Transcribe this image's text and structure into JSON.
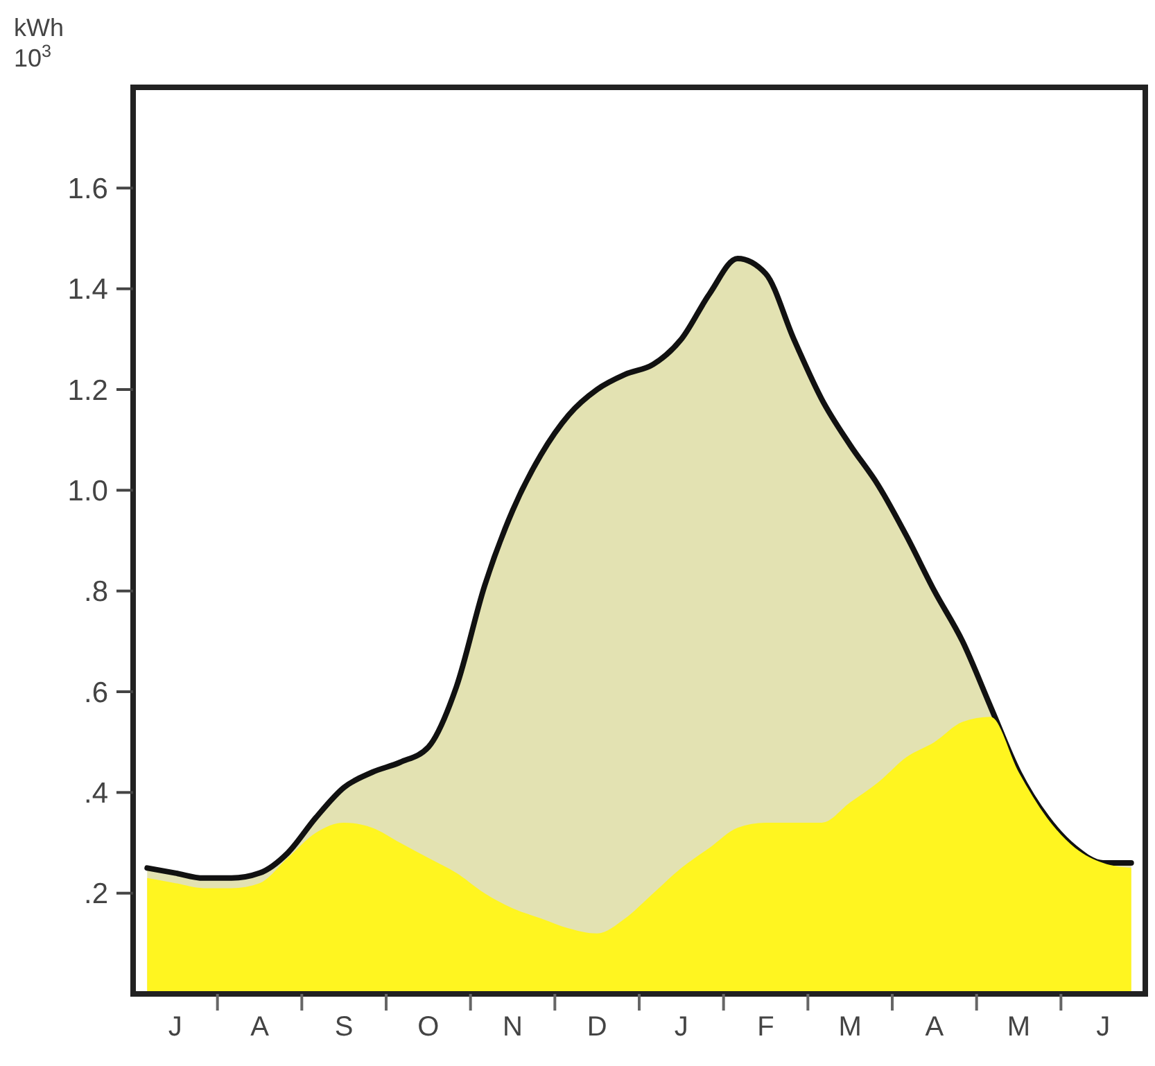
{
  "chart_data": {
    "type": "area",
    "ylabel": "kWh 10$^{3}$",
    "ylim": [
      0,
      1.8
    ],
    "yticks": [
      {
        "value": 0.2,
        "label": ".2"
      },
      {
        "value": 0.4,
        "label": ".4"
      },
      {
        "value": 0.6,
        "label": ".6"
      },
      {
        "value": 0.8,
        "label": ".8"
      },
      {
        "value": 1.0,
        "label": "1.0"
      },
      {
        "value": 1.2,
        "label": "1.2"
      },
      {
        "value": 1.4,
        "label": "1.4"
      },
      {
        "value": 1.6,
        "label": "1.6"
      }
    ],
    "categories": [
      null,
      "J",
      null,
      null,
      "A",
      null,
      null,
      "S",
      null,
      null,
      "O",
      null,
      null,
      "N",
      null,
      null,
      "D",
      null,
      null,
      "J",
      null,
      null,
      "F",
      null,
      null,
      "M",
      null,
      null,
      "A",
      null,
      null,
      "M",
      null,
      null,
      "J",
      null
    ],
    "grid": false,
    "series": [
      {
        "color": "#e3e2b2",
        "line_style": "solid",
        "values": [
          0.25,
          0.24,
          0.23,
          0.23,
          0.24,
          0.28,
          0.35,
          0.41,
          0.44,
          0.46,
          0.49,
          0.61,
          0.81,
          0.96,
          1.07,
          1.15,
          1.2,
          1.23,
          1.25,
          1.3,
          1.39,
          1.46,
          1.43,
          1.3,
          1.18,
          1.09,
          1.01,
          0.91,
          0.8,
          0.7,
          0.57,
          0.44,
          0.35,
          0.29,
          0.26,
          0.26
        ]
      },
      {
        "color": "#fff520",
        "values": [
          0.23,
          0.22,
          0.21,
          0.21,
          0.22,
          0.27,
          0.32,
          0.34,
          0.33,
          0.3,
          0.27,
          0.24,
          0.2,
          0.17,
          0.15,
          0.13,
          0.12,
          0.15,
          0.2,
          0.25,
          0.29,
          0.33,
          0.34,
          0.34,
          0.34,
          0.38,
          0.42,
          0.47,
          0.5,
          0.54,
          0.55,
          0.44,
          0.35,
          0.29,
          0.26,
          0.25
        ]
      }
    ]
  }
}
